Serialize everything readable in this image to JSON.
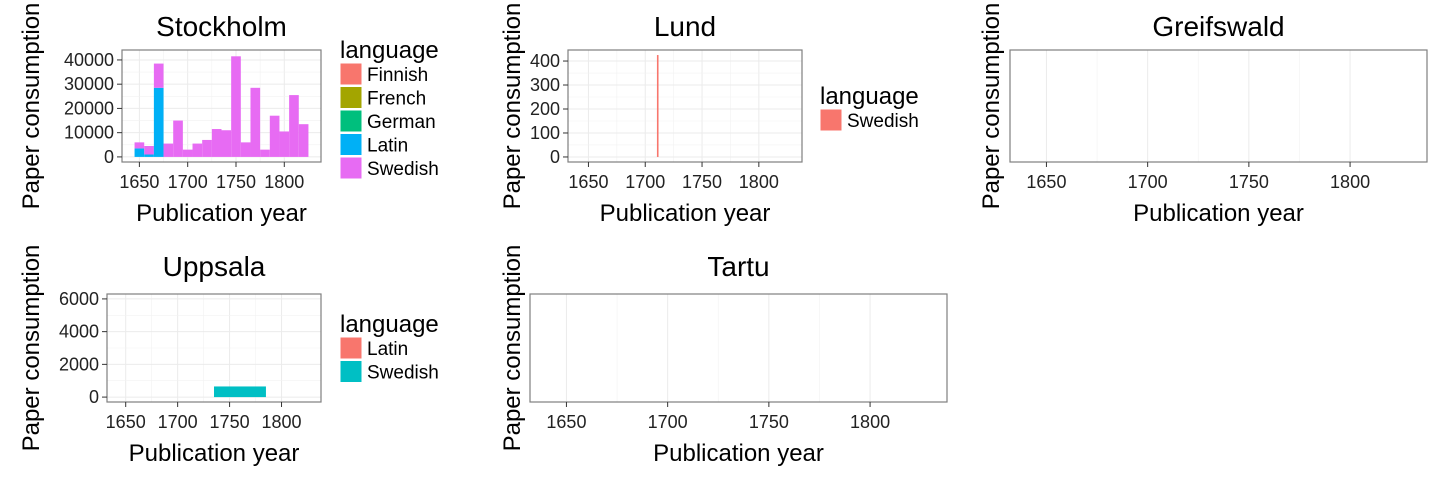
{
  "chart_data": [
    {
      "id": "stockholm",
      "type": "bar",
      "stacked": true,
      "title": "Stockholm",
      "xlabel": "Publication year",
      "ylabel": "Paper consumption",
      "xlim": [
        1632,
        1838
      ],
      "ylim": [
        -2100,
        44100
      ],
      "xticks": [
        1650,
        1700,
        1750,
        1800
      ],
      "xtick_labels": [
        "1650",
        "1700",
        "1750",
        "1800"
      ],
      "yticks": [
        0,
        10000,
        20000,
        30000,
        40000
      ],
      "ytick_labels": [
        "0",
        "10000",
        "20000",
        "30000",
        "40000"
      ],
      "grid": true,
      "legend": {
        "title": "language",
        "position": "right",
        "items": [
          {
            "label": "Finnish",
            "color": "#F8766D"
          },
          {
            "label": "French",
            "color": "#A3A500"
          },
          {
            "label": "German",
            "color": "#00BF7D"
          },
          {
            "label": "Latin",
            "color": "#00B0F6"
          },
          {
            "label": "Swedish",
            "color": "#E76BF3"
          }
        ]
      },
      "bin_width": 10,
      "bins": [
        {
          "x": 1650,
          "segments": [
            {
              "language": "Latin",
              "value": 3500
            },
            {
              "language": "Swedish",
              "value": 2500
            }
          ]
        },
        {
          "x": 1660,
          "segments": [
            {
              "language": "Latin",
              "value": 1000
            },
            {
              "language": "Swedish",
              "value": 3500
            }
          ]
        },
        {
          "x": 1670,
          "segments": [
            {
              "language": "Latin",
              "value": 28500
            },
            {
              "language": "Swedish",
              "value": 10000
            }
          ]
        },
        {
          "x": 1680,
          "segments": [
            {
              "language": "Swedish",
              "value": 5500
            }
          ]
        },
        {
          "x": 1690,
          "segments": [
            {
              "language": "Swedish",
              "value": 15000
            }
          ]
        },
        {
          "x": 1700,
          "segments": [
            {
              "language": "Swedish",
              "value": 3000
            }
          ]
        },
        {
          "x": 1710,
          "segments": [
            {
              "language": "Swedish",
              "value": 5500
            }
          ]
        },
        {
          "x": 1720,
          "segments": [
            {
              "language": "Swedish",
              "value": 7000
            }
          ]
        },
        {
          "x": 1730,
          "segments": [
            {
              "language": "Swedish",
              "value": 11500
            }
          ]
        },
        {
          "x": 1740,
          "segments": [
            {
              "language": "Swedish",
              "value": 11000
            }
          ]
        },
        {
          "x": 1750,
          "segments": [
            {
              "language": "Swedish",
              "value": 41500
            }
          ]
        },
        {
          "x": 1760,
          "segments": [
            {
              "language": "Swedish",
              "value": 6000
            }
          ]
        },
        {
          "x": 1770,
          "segments": [
            {
              "language": "Swedish",
              "value": 28500
            }
          ]
        },
        {
          "x": 1780,
          "segments": [
            {
              "language": "Swedish",
              "value": 3000
            }
          ]
        },
        {
          "x": 1790,
          "segments": [
            {
              "language": "Swedish",
              "value": 17000
            }
          ]
        },
        {
          "x": 1800,
          "segments": [
            {
              "language": "Swedish",
              "value": 10500
            }
          ]
        },
        {
          "x": 1810,
          "segments": [
            {
              "language": "Swedish",
              "value": 25500
            }
          ]
        },
        {
          "x": 1820,
          "segments": [
            {
              "language": "Swedish",
              "value": 13500
            }
          ]
        }
      ]
    },
    {
      "id": "lund",
      "type": "bar",
      "stacked": true,
      "title": "Lund",
      "xlabel": "Publication year",
      "ylabel": "Paper consumption",
      "xlim": [
        1632,
        1838
      ],
      "ylim": [
        -21,
        446
      ],
      "xticks": [
        1650,
        1700,
        1750,
        1800
      ],
      "xtick_labels": [
        "1650",
        "1700",
        "1750",
        "1800"
      ],
      "yticks": [
        0,
        100,
        200,
        300,
        400
      ],
      "ytick_labels": [
        "0",
        "100",
        "200",
        "300",
        "400"
      ],
      "grid": true,
      "legend": {
        "title": "language",
        "position": "right",
        "items": [
          {
            "label": "Swedish",
            "color": "#F8766D"
          }
        ]
      },
      "bin_width": 1,
      "bins": [
        {
          "x": 1711,
          "segments": [
            {
              "language": "Swedish",
              "value": 425
            }
          ]
        }
      ]
    },
    {
      "id": "greifswald",
      "type": "bar",
      "title": "Greifswald",
      "xlabel": "Publication year",
      "ylabel": "Paper consumption",
      "xlim": [
        1632,
        1838
      ],
      "xticks": [
        1650,
        1700,
        1750,
        1800
      ],
      "xtick_labels": [
        "1650",
        "1700",
        "1750",
        "1800"
      ],
      "yticks": [],
      "ytick_labels": [],
      "grid": true,
      "bins": []
    },
    {
      "id": "uppsala",
      "type": "bar",
      "stacked": true,
      "title": "Uppsala",
      "xlabel": "Publication year",
      "ylabel": "Paper consumption",
      "xlim": [
        1632,
        1838
      ],
      "ylim": [
        -300,
        6300
      ],
      "xticks": [
        1650,
        1700,
        1750,
        1800
      ],
      "xtick_labels": [
        "1650",
        "1700",
        "1750",
        "1800"
      ],
      "yticks": [
        0,
        2000,
        4000,
        6000
      ],
      "ytick_labels": [
        "0",
        "2000",
        "4000",
        "6000"
      ],
      "grid": true,
      "legend": {
        "title": "language",
        "position": "right",
        "items": [
          {
            "label": "Latin",
            "color": "#F8766D"
          },
          {
            "label": "Swedish",
            "color": "#00BFC4"
          }
        ]
      },
      "bin_width": 50,
      "bins": [
        {
          "x": 1760,
          "segments": [
            {
              "language": "Swedish",
              "value": 650
            }
          ]
        }
      ]
    },
    {
      "id": "tartu",
      "type": "bar",
      "title": "Tartu",
      "xlabel": "Publication year",
      "ylabel": "Paper consumption",
      "xlim": [
        1632,
        1838
      ],
      "xticks": [
        1650,
        1700,
        1750,
        1800
      ],
      "xtick_labels": [
        "1650",
        "1700",
        "1750",
        "1800"
      ],
      "yticks": [],
      "ytick_labels": [],
      "grid": true,
      "bins": []
    }
  ]
}
